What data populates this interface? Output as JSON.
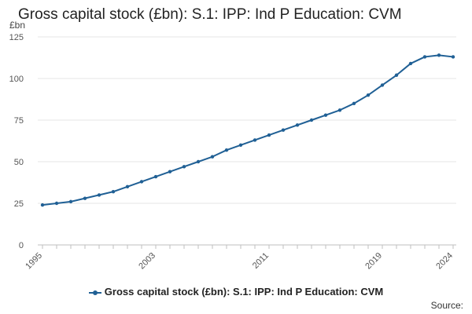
{
  "chart_data": {
    "type": "line",
    "title": "Gross capital stock (£bn): S.1: IPP: Ind P Education: CVM",
    "ylabel": "£bn",
    "xlabel": "",
    "ylim": [
      0,
      125
    ],
    "yticks": [
      0,
      25,
      50,
      75,
      100,
      125
    ],
    "xlim": [
      1995,
      2024
    ],
    "xtick_labels": [
      "1995",
      "2003",
      "2011",
      "2019",
      "2024"
    ],
    "grid": true,
    "legend_position": "bottom",
    "series": [
      {
        "name": "Gross capital stock (£bn): S.1: IPP: Ind P Education: CVM",
        "color": "#206095",
        "x": [
          1995,
          1996,
          1997,
          1998,
          1999,
          2000,
          2001,
          2002,
          2003,
          2004,
          2005,
          2006,
          2007,
          2008,
          2009,
          2010,
          2011,
          2012,
          2013,
          2014,
          2015,
          2016,
          2017,
          2018,
          2019,
          2020,
          2021,
          2022,
          2023,
          2024
        ],
        "values": [
          24,
          25,
          26,
          28,
          30,
          32,
          35,
          38,
          41,
          44,
          47,
          50,
          53,
          57,
          60,
          63,
          66,
          69,
          72,
          75,
          78,
          81,
          85,
          90,
          96,
          102,
          109,
          113,
          114,
          113
        ]
      }
    ]
  },
  "legend": {
    "label": "Gross capital stock (£bn): S.1: IPP: Ind P Education: CVM"
  },
  "source": {
    "label": "Source:"
  }
}
